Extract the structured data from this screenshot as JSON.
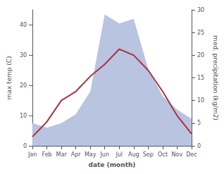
{
  "chart_data": {
    "type": "line",
    "xlabel": "date (month)",
    "ylabel": "max temp (C)",
    "y2label": "med. precipitation (kg/m2)",
    "categories": [
      "Jan",
      "Feb",
      "Mar",
      "Apr",
      "May",
      "Jun",
      "Jul",
      "Aug",
      "Sep",
      "Oct",
      "Nov",
      "Dec"
    ],
    "series": [
      {
        "type": "area",
        "axis": "y2",
        "color": "#b8c4e0",
        "values": [
          5,
          4,
          5,
          7,
          12,
          29,
          27,
          28,
          17,
          11,
          8,
          6
        ]
      },
      {
        "type": "line",
        "color": "#b03040",
        "values": [
          3,
          8,
          15,
          18,
          23,
          27,
          32,
          30,
          25,
          18,
          10,
          4
        ]
      }
    ],
    "ylim": [
      0,
      45
    ],
    "yticks": [
      0,
      10,
      20,
      30,
      40
    ],
    "y2lim": [
      0,
      30
    ],
    "y2ticks": [
      0,
      5,
      10,
      15,
      20,
      25,
      30
    ],
    "grid": false
  }
}
